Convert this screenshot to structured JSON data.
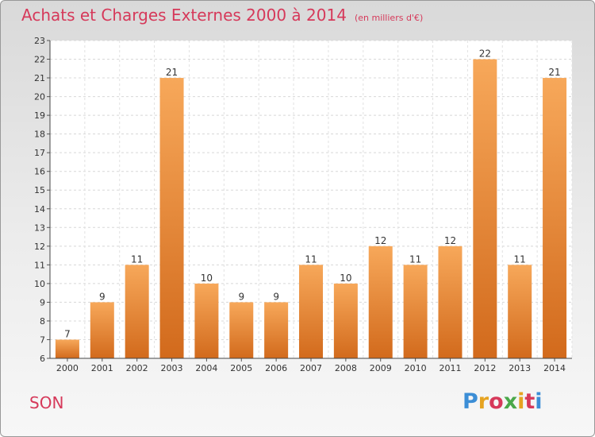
{
  "header": {
    "title": "Achats et Charges Externes 2000 à 2014",
    "subtitle": "(en milliers d'€)"
  },
  "footer": {
    "place": "SON",
    "logo_text": "Proxiti",
    "logo_colors": [
      "#3c8ed6",
      "#e6a321",
      "#d6395a",
      "#4aa84a",
      "#e6a321",
      "#d6395a",
      "#3c8ed6"
    ]
  },
  "chart_data": {
    "type": "bar",
    "title": "Achats et Charges Externes 2000 à 2014",
    "subtitle": "(en milliers d'€)",
    "categories": [
      "2000",
      "2001",
      "2002",
      "2003",
      "2004",
      "2005",
      "2006",
      "2007",
      "2008",
      "2009",
      "2010",
      "2011",
      "2012",
      "2013",
      "2014"
    ],
    "values": [
      7,
      9,
      11,
      21,
      10,
      9,
      9,
      11,
      10,
      12,
      11,
      12,
      22,
      11,
      21
    ],
    "data_labels": [
      "7",
      "9",
      "11",
      "21",
      "10",
      "9",
      "9",
      "11",
      "10",
      "12",
      "11",
      "12",
      "22",
      "11",
      "21"
    ],
    "ylim": [
      6,
      23
    ],
    "yticks": [
      "6",
      "7",
      "8",
      "9",
      "10",
      "11",
      "12",
      "13",
      "14",
      "15",
      "16",
      "17",
      "18",
      "19",
      "20",
      "21",
      "22",
      "23"
    ],
    "grid": true,
    "bar_color_top": "#f7a85a",
    "bar_color_bottom": "#d26a1c"
  }
}
